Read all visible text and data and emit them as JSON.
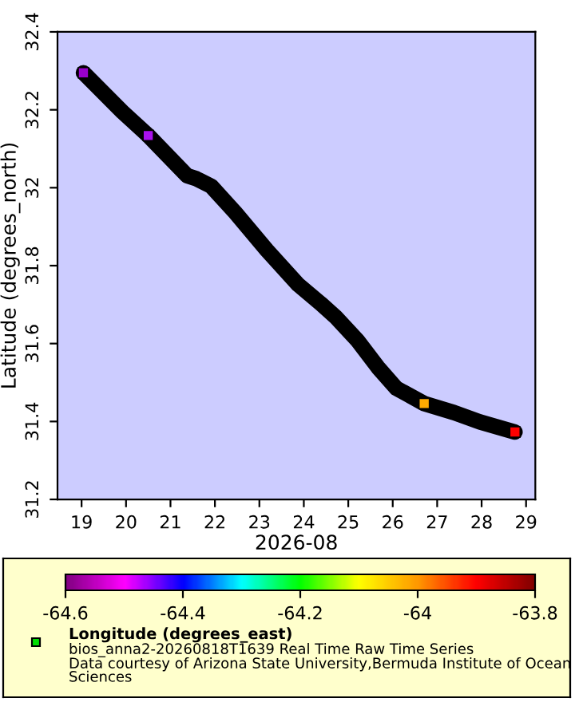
{
  "chart_data": {
    "type": "line",
    "xlabel": "2026-08",
    "ylabel": "Latitude (degrees_north)",
    "clabel": "Longitude (degrees_east)",
    "annotations": [
      "bios_anna2-20260818T1639 Real Time Raw Time Series",
      "Data courtesy of Arizona State University,Bermuda Institute of Ocean Sciences"
    ],
    "xlim": [
      "2026-08-18T11:00",
      "2026-08-29T05:00"
    ],
    "xticks": [
      {
        "value": "2026-08-19",
        "label": "19"
      },
      {
        "value": "2026-08-20",
        "label": "20"
      },
      {
        "value": "2026-08-21",
        "label": "21"
      },
      {
        "value": "2026-08-22",
        "label": "22"
      },
      {
        "value": "2026-08-23",
        "label": "23"
      },
      {
        "value": "2026-08-24",
        "label": "24"
      },
      {
        "value": "2026-08-25",
        "label": "25"
      },
      {
        "value": "2026-08-26",
        "label": "26"
      },
      {
        "value": "2026-08-27",
        "label": "27"
      },
      {
        "value": "2026-08-28",
        "label": "28"
      },
      {
        "value": "2026-08-29",
        "label": "29"
      }
    ],
    "ylim": [
      31.2,
      32.4
    ],
    "yticks": [
      31.2,
      31.4,
      31.6,
      31.8,
      32,
      32.2,
      32.4
    ],
    "clim": [
      -64.6,
      -63.8
    ],
    "cticks": [
      -64.6,
      -64.4,
      -64.2,
      -64,
      -63.8
    ],
    "grid": false,
    "series": [
      {
        "color": "#000000",
        "x": [
          "2026-08-19T01:00",
          "2026-08-19T22:00",
          "2026-08-20T12:00",
          "2026-08-21T09:00",
          "2026-08-21T14:00",
          "2026-08-21T22:00",
          "2026-08-22T11:00",
          "2026-08-23T04:00",
          "2026-08-23T21:00",
          "2026-08-24T09:00",
          "2026-08-24T17:00",
          "2026-08-25T05:00",
          "2026-08-25T16:00",
          "2026-08-26T02:00",
          "2026-08-26T17:00",
          "2026-08-27T09:00",
          "2026-08-27T23:00",
          "2026-08-28T18:00"
        ],
        "values": [
          32.295,
          32.195,
          32.134,
          32.031,
          32.023,
          32.004,
          31.936,
          31.84,
          31.751,
          31.703,
          31.669,
          31.608,
          31.539,
          31.485,
          31.446,
          31.423,
          31.399,
          31.373
        ]
      },
      {
        "type": "scatter",
        "x": [
          "2026-08-19T01:00",
          "2026-08-20T12:00",
          "2026-08-26T17:00",
          "2026-08-28T18:00"
        ],
        "values": [
          32.295,
          32.134,
          31.446,
          31.373
        ],
        "colors": [
          "#9900cc",
          "#aa11ee",
          "#ffaa00",
          "#ff0000"
        ],
        "marker": "square"
      }
    ]
  }
}
